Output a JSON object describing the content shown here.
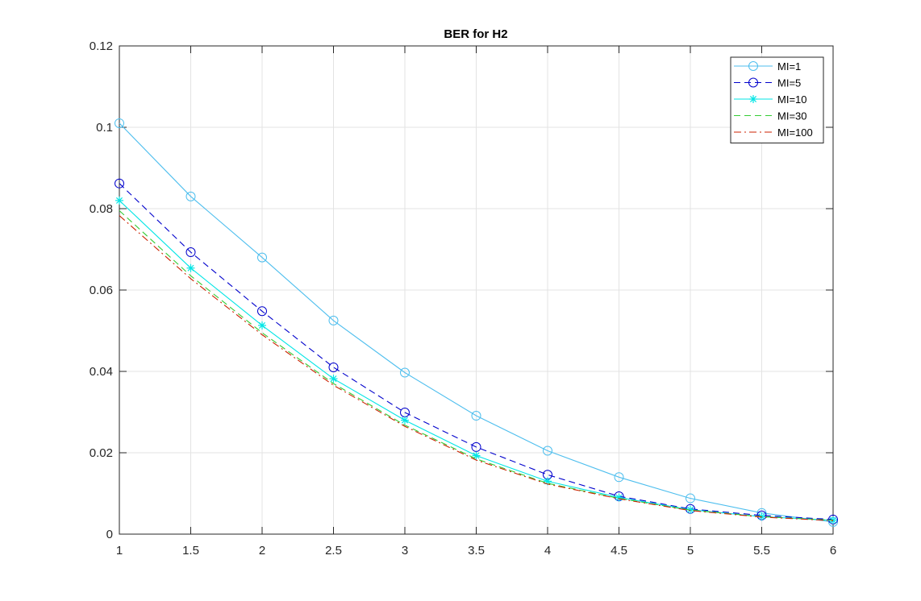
{
  "chart_data": {
    "type": "line",
    "title": "BER for H2",
    "xlabel": "",
    "ylabel": "",
    "xlim": [
      1,
      6
    ],
    "ylim": [
      0,
      0.12
    ],
    "x_ticks": [
      "1",
      "1.5",
      "2",
      "2.5",
      "3",
      "3.5",
      "4",
      "4.5",
      "5",
      "5.5",
      "6"
    ],
    "y_ticks": [
      "0",
      "0.02",
      "0.04",
      "0.06",
      "0.08",
      "0.1",
      "0.12"
    ],
    "grid": true,
    "legend_position": "top-right",
    "x": [
      1,
      1.5,
      2,
      2.5,
      3,
      3.5,
      4,
      4.5,
      5,
      5.5,
      6
    ],
    "series": [
      {
        "name": "MI=1",
        "values": [
          0.101,
          0.083,
          0.068,
          0.0525,
          0.0397,
          0.0291,
          0.0205,
          0.014,
          0.0088,
          0.0052,
          0.003
        ],
        "color": "#4DBEEE",
        "line": "solid",
        "marker": "circle"
      },
      {
        "name": "MI=5",
        "values": [
          0.0862,
          0.0693,
          0.0548,
          0.041,
          0.0299,
          0.0214,
          0.0146,
          0.0093,
          0.0062,
          0.0046,
          0.0036
        ],
        "color": "#0000CC",
        "line": "dashed",
        "marker": "circle"
      },
      {
        "name": "MI=10",
        "values": [
          0.082,
          0.0654,
          0.0513,
          0.0382,
          0.028,
          0.0193,
          0.013,
          0.009,
          0.006,
          0.0043,
          0.0034
        ],
        "color": "#00E5E5",
        "line": "solid",
        "marker": "star"
      },
      {
        "name": "MI=30",
        "values": [
          0.0795,
          0.0635,
          0.0495,
          0.037,
          0.0268,
          0.0185,
          0.0125,
          0.0088,
          0.0059,
          0.0043,
          0.0034
        ],
        "color": "#33CC33",
        "line": "dashed",
        "marker": "none"
      },
      {
        "name": "MI=100",
        "values": [
          0.0783,
          0.0628,
          0.049,
          0.0366,
          0.0265,
          0.0182,
          0.0123,
          0.0087,
          0.0058,
          0.0042,
          0.0033
        ],
        "color": "#CC2200",
        "line": "dashdot",
        "marker": "none"
      }
    ]
  }
}
